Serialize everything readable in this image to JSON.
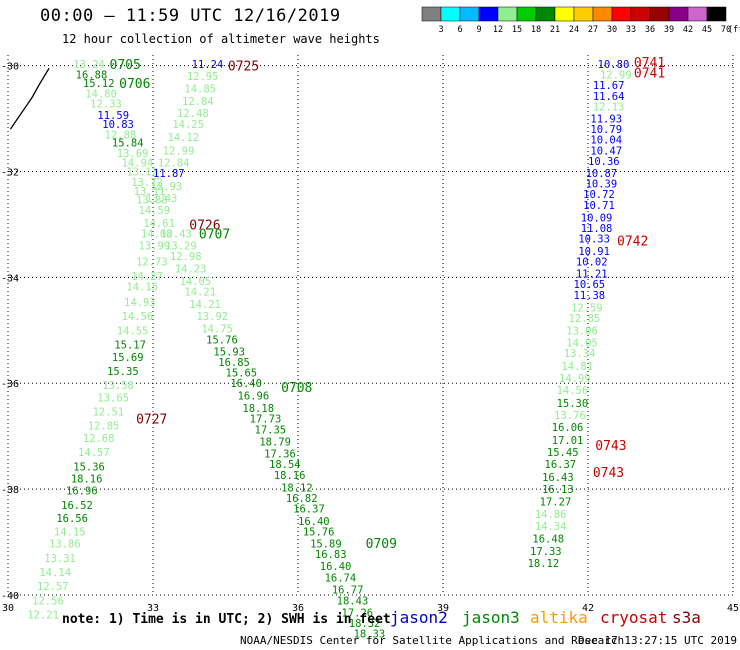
{
  "header": {
    "title": "00:00 – 11:59 UTC 12/16/2019",
    "subtitle": "12 hour collection of altimeter wave heights"
  },
  "footer": {
    "note": "note: 1) Time is in UTC; 2) SWH is in feet",
    "credit": "NOAA/NESDIS Center for Satellite Applications and Research",
    "timestamp": "Dec 17 13:27:15 UTC 2019"
  },
  "legend": {
    "jason2": {
      "label": "jason2",
      "color": "#0000cc"
    },
    "jason3": {
      "label": "jason3",
      "color": "#008800"
    },
    "altika": {
      "label": "altika",
      "color": "#ff9900"
    },
    "cryosat": {
      "label": "cryosat",
      "color": "#cc0000"
    },
    "s3a": {
      "label": "s3a",
      "color": "#880000"
    }
  },
  "colorbar": {
    "labels": [
      "3",
      "6",
      "9",
      "12",
      "15",
      "18",
      "21",
      "24",
      "27",
      "30",
      "33",
      "36",
      "39",
      "42",
      "45",
      "70",
      "(ft)"
    ],
    "colors": [
      "#808080",
      "#00ffff",
      "#00bbff",
      "#0000ff",
      "#90ee90",
      "#00cc00",
      "#008800",
      "#ffff00",
      "#ffcc00",
      "#ff8800",
      "#ff0000",
      "#cc0000",
      "#990000",
      "#880088",
      "#cc66cc",
      "#000000"
    ]
  },
  "chart_data": {
    "type": "scatter",
    "xlim": [
      30,
      45
    ],
    "ylim": [
      -40,
      -29.8
    ],
    "x_ticks": [
      "30",
      "33",
      "36",
      "39",
      "42",
      "45"
    ],
    "y_ticks": [
      "-30",
      "-32",
      "-34",
      "-36",
      "-38",
      "-40"
    ],
    "grid": true,
    "coastline": [
      [
        30.05,
        -31.2
      ],
      [
        30.2,
        -31.0
      ],
      [
        30.35,
        -30.8
      ],
      [
        30.5,
        -30.6
      ],
      [
        30.62,
        -30.4
      ],
      [
        30.75,
        -30.2
      ],
      [
        30.85,
        -30.05
      ]
    ],
    "time_labels": [
      {
        "text": "0705",
        "x": 32.1,
        "y": -29.97,
        "color": "#008800"
      },
      {
        "text": "0706",
        "x": 32.3,
        "y": -30.33,
        "color": "#008800"
      },
      {
        "text": "0725",
        "x": 34.55,
        "y": -30.0,
        "color": "#880000"
      },
      {
        "text": "0741",
        "x": 42.95,
        "y": -29.93,
        "color": "#cc0000"
      },
      {
        "text": "0741",
        "x": 42.95,
        "y": -30.13,
        "color": "#cc0000"
      },
      {
        "text": "0726",
        "x": 33.75,
        "y": -33.0,
        "color": "#880000"
      },
      {
        "text": "0707",
        "x": 33.95,
        "y": -33.17,
        "color": "#008800"
      },
      {
        "text": "0742",
        "x": 42.6,
        "y": -33.3,
        "color": "#cc0000"
      },
      {
        "text": "0708",
        "x": 35.65,
        "y": -36.07,
        "color": "#008800"
      },
      {
        "text": "0727",
        "x": 32.65,
        "y": -36.67,
        "color": "#880000"
      },
      {
        "text": "0743",
        "x": 42.15,
        "y": -37.17,
        "color": "#cc0000"
      },
      {
        "text": "0743",
        "x": 42.1,
        "y": -37.68,
        "color": "#cc0000"
      },
      {
        "text": "0709",
        "x": 37.4,
        "y": -39.02,
        "color": "#008800"
      }
    ],
    "series": [
      {
        "name": "track_a",
        "points": [
          [
            31.35,
            -29.97,
            "13.24",
            "#90ee90"
          ],
          [
            31.4,
            -30.17,
            "16.88",
            "#008800"
          ],
          [
            31.55,
            -30.33,
            "15.12",
            "#008800"
          ],
          [
            31.6,
            -30.53,
            "14.80",
            "#90ee90"
          ],
          [
            31.7,
            -30.72,
            "12.33",
            "#90ee90"
          ],
          [
            31.85,
            -30.93,
            "11.59",
            "#0000ff"
          ],
          [
            31.95,
            -31.1,
            "10.83",
            "#0000ff"
          ],
          [
            32.0,
            -31.3,
            "12.88",
            "#90ee90"
          ],
          [
            32.15,
            -31.45,
            "15.84",
            "#008800"
          ],
          [
            32.25,
            -31.65,
            "13.69",
            "#90ee90"
          ],
          [
            32.35,
            -31.83,
            "14.94",
            "#90ee90"
          ],
          [
            32.45,
            -32.0,
            "13.12",
            "#90ee90"
          ],
          [
            32.55,
            -32.2,
            "13.72",
            "#90ee90"
          ],
          [
            32.6,
            -32.37,
            "13.11",
            "#90ee90"
          ],
          [
            32.65,
            -32.53,
            "13.88",
            "#90ee90"
          ],
          [
            32.7,
            -32.73,
            "14.59",
            "#90ee90"
          ],
          [
            32.8,
            -32.97,
            "14.61",
            "#90ee90"
          ],
          [
            32.75,
            -33.17,
            "14.08",
            "#90ee90"
          ],
          [
            32.7,
            -33.4,
            "13.99",
            "#90ee90"
          ],
          [
            32.65,
            -33.7,
            "12.73",
            "#90ee90"
          ],
          [
            32.55,
            -33.97,
            "14.27",
            "#90ee90"
          ],
          [
            32.45,
            -34.17,
            "14.15",
            "#90ee90"
          ],
          [
            32.4,
            -34.47,
            "14.93",
            "#90ee90"
          ],
          [
            32.35,
            -34.73,
            "14.56",
            "#90ee90"
          ],
          [
            32.25,
            -35.0,
            "14.55",
            "#90ee90"
          ],
          [
            32.2,
            -35.27,
            "15.17",
            "#008800"
          ],
          [
            32.15,
            -35.5,
            "15.69",
            "#008800"
          ],
          [
            32.05,
            -35.77,
            "15.35",
            "#008800"
          ],
          [
            31.95,
            -36.03,
            "13.58",
            "#90ee90"
          ],
          [
            31.85,
            -36.27,
            "13.65",
            "#90ee90"
          ],
          [
            31.75,
            -36.53,
            "12.51",
            "#90ee90"
          ],
          [
            31.65,
            -36.8,
            "12.85",
            "#90ee90"
          ],
          [
            31.55,
            -37.03,
            "12.68",
            "#90ee90"
          ],
          [
            31.45,
            -37.3,
            "14.57",
            "#90ee90"
          ],
          [
            31.35,
            -37.57,
            "15.36",
            "#008800"
          ],
          [
            31.3,
            -37.8,
            "18.16",
            "#008800"
          ],
          [
            31.2,
            -38.03,
            "16.96",
            "#008800"
          ],
          [
            31.1,
            -38.3,
            "16.52",
            "#008800"
          ],
          [
            31.0,
            -38.55,
            "16.56",
            "#008800"
          ],
          [
            30.95,
            -38.8,
            "14.15",
            "#90ee90"
          ],
          [
            30.85,
            -39.03,
            "13.86",
            "#90ee90"
          ],
          [
            30.75,
            -39.3,
            "13.31",
            "#90ee90"
          ],
          [
            30.65,
            -39.57,
            "14.14",
            "#90ee90"
          ],
          [
            30.6,
            -39.83,
            "12.57",
            "#90ee90"
          ],
          [
            30.5,
            -40.1,
            "12.56",
            "#90ee90"
          ],
          [
            30.4,
            -40.37,
            "12.21",
            "#90ee90"
          ]
        ]
      },
      {
        "name": "track_b",
        "points": [
          [
            33.8,
            -29.97,
            "11.24",
            "#0000ff"
          ],
          [
            33.7,
            -30.2,
            "12.95",
            "#90ee90"
          ],
          [
            33.65,
            -30.43,
            "14.85",
            "#90ee90"
          ],
          [
            33.6,
            -30.67,
            "12.84",
            "#90ee90"
          ],
          [
            33.5,
            -30.9,
            "12.48",
            "#90ee90"
          ],
          [
            33.4,
            -31.1,
            "14.25",
            "#90ee90"
          ],
          [
            33.3,
            -31.35,
            "14.12",
            "#90ee90"
          ],
          [
            33.2,
            -31.6,
            "12.99",
            "#90ee90"
          ],
          [
            33.1,
            -31.83,
            "12.84",
            "#90ee90"
          ],
          [
            33.0,
            -32.03,
            "11.87",
            "#0000ff"
          ],
          [
            32.95,
            -32.27,
            "12.93",
            "#90ee90"
          ],
          [
            32.85,
            -32.5,
            "13.43",
            "#90ee90"
          ],
          [
            33.15,
            -33.17,
            "12.43",
            "#90ee90"
          ],
          [
            33.25,
            -33.4,
            "13.29",
            "#90ee90"
          ],
          [
            33.35,
            -33.6,
            "12.98",
            "#90ee90"
          ],
          [
            33.45,
            -33.83,
            "14.23",
            "#90ee90"
          ],
          [
            33.55,
            -34.07,
            "14.05",
            "#90ee90"
          ],
          [
            33.65,
            -34.27,
            "14.21",
            "#90ee90"
          ],
          [
            33.75,
            -34.5,
            "14.21",
            "#90ee90"
          ],
          [
            33.9,
            -34.73,
            "13.92",
            "#90ee90"
          ],
          [
            34.0,
            -34.97,
            "14.75",
            "#90ee90"
          ],
          [
            34.1,
            -35.17,
            "15.76",
            "#008800"
          ],
          [
            34.25,
            -35.4,
            "15.93",
            "#008800"
          ],
          [
            34.35,
            -35.6,
            "16.85",
            "#008800"
          ],
          [
            34.5,
            -35.8,
            "15.65",
            "#008800"
          ],
          [
            34.6,
            -36.0,
            "16.40",
            "#008800"
          ],
          [
            34.75,
            -36.23,
            "16.96",
            "#008800"
          ],
          [
            34.85,
            -36.47,
            "18.18",
            "#008800"
          ],
          [
            35.0,
            -36.67,
            "17.73",
            "#008800"
          ],
          [
            35.1,
            -36.87,
            "17.35",
            "#008800"
          ],
          [
            35.2,
            -37.1,
            "18.79",
            "#008800"
          ],
          [
            35.3,
            -37.33,
            "17.36",
            "#008800"
          ],
          [
            35.4,
            -37.53,
            "18.54",
            "#008800"
          ],
          [
            35.5,
            -37.73,
            "18.16",
            "#008800"
          ],
          [
            35.65,
            -37.97,
            "18.12",
            "#008800"
          ],
          [
            35.75,
            -38.17,
            "16.82",
            "#008800"
          ],
          [
            35.9,
            -38.37,
            "16.37",
            "#008800"
          ],
          [
            36.0,
            -38.6,
            "16.40",
            "#008800"
          ],
          [
            36.1,
            -38.8,
            "15.76",
            "#008800"
          ],
          [
            36.25,
            -39.03,
            "15.89",
            "#008800"
          ],
          [
            36.35,
            -39.23,
            "16.83",
            "#008800"
          ],
          [
            36.45,
            -39.45,
            "16.40",
            "#008800"
          ],
          [
            36.55,
            -39.67,
            "16.74",
            "#008800"
          ],
          [
            36.7,
            -39.9,
            "16.77",
            "#008800"
          ],
          [
            36.8,
            -40.1,
            "18.43",
            "#008800"
          ],
          [
            36.9,
            -40.33,
            "17.26",
            "#008800"
          ],
          [
            37.05,
            -40.53,
            "18.32",
            "#008800"
          ],
          [
            37.15,
            -40.73,
            "18.33",
            "#008800"
          ]
        ]
      },
      {
        "name": "track_c",
        "points": [
          [
            42.2,
            -29.97,
            "10.80",
            "#0000ff"
          ],
          [
            42.25,
            -30.17,
            "12.99",
            "#90ee90"
          ],
          [
            42.1,
            -30.37,
            "11.67",
            "#0000ff"
          ],
          [
            42.1,
            -30.57,
            "11.64",
            "#0000ff"
          ],
          [
            42.1,
            -30.77,
            "12.13",
            "#90ee90"
          ],
          [
            42.05,
            -31.0,
            "11.93",
            "#0000ff"
          ],
          [
            42.05,
            -31.2,
            "10.79",
            "#0000ff"
          ],
          [
            42.05,
            -31.4,
            "10.04",
            "#0000ff"
          ],
          [
            42.05,
            -31.6,
            "10.47",
            "#0000ff"
          ],
          [
            42.0,
            -31.8,
            "10.36",
            "#0000ff"
          ],
          [
            41.95,
            -32.03,
            "10.87",
            "#0000ff"
          ],
          [
            41.95,
            -32.23,
            "10.39",
            "#0000ff"
          ],
          [
            41.9,
            -32.43,
            "10.72",
            "#0000ff"
          ],
          [
            41.9,
            -32.63,
            "10.71",
            "#0000ff"
          ],
          [
            41.85,
            -32.87,
            "10.09",
            "#0000ff"
          ],
          [
            41.85,
            -33.07,
            "11.08",
            "#0000ff"
          ],
          [
            41.8,
            -33.27,
            "10.33",
            "#0000ff"
          ],
          [
            41.8,
            -33.5,
            "10.91",
            "#0000ff"
          ],
          [
            41.75,
            -33.7,
            "10.02",
            "#0000ff"
          ],
          [
            41.75,
            -33.93,
            "11.21",
            "#0000ff"
          ],
          [
            41.7,
            -34.13,
            "10.65",
            "#0000ff"
          ],
          [
            41.7,
            -34.33,
            "11.38",
            "#0000ff"
          ],
          [
            41.65,
            -34.57,
            "12.59",
            "#90ee90"
          ],
          [
            41.6,
            -34.77,
            "12.85",
            "#90ee90"
          ],
          [
            41.55,
            -35.0,
            "13.06",
            "#90ee90"
          ],
          [
            41.55,
            -35.23,
            "14.05",
            "#90ee90"
          ],
          [
            41.5,
            -35.43,
            "13.34",
            "#90ee90"
          ],
          [
            41.45,
            -35.67,
            "14.81",
            "#90ee90"
          ],
          [
            41.4,
            -35.9,
            "14.99",
            "#90ee90"
          ],
          [
            41.35,
            -36.13,
            "14.56",
            "#90ee90"
          ],
          [
            41.35,
            -36.37,
            "15.30",
            "#008800"
          ],
          [
            41.3,
            -36.6,
            "13.76",
            "#90ee90"
          ],
          [
            41.25,
            -36.83,
            "16.06",
            "#008800"
          ],
          [
            41.25,
            -37.07,
            "17.01",
            "#008800"
          ],
          [
            41.15,
            -37.3,
            "15.45",
            "#008800"
          ],
          [
            41.1,
            -37.53,
            "16.37",
            "#008800"
          ],
          [
            41.05,
            -37.77,
            "16.43",
            "#008800"
          ],
          [
            41.05,
            -38.0,
            "16.13",
            "#008800"
          ],
          [
            41.0,
            -38.23,
            "17.27",
            "#008800"
          ],
          [
            40.9,
            -38.47,
            "14.86",
            "#90ee90"
          ],
          [
            40.9,
            -38.7,
            "14.34",
            "#90ee90"
          ],
          [
            40.85,
            -38.93,
            "16.48",
            "#008800"
          ],
          [
            40.8,
            -39.17,
            "17.33",
            "#008800"
          ],
          [
            40.75,
            -39.4,
            "18.12",
            "#008800"
          ]
        ]
      }
    ]
  }
}
